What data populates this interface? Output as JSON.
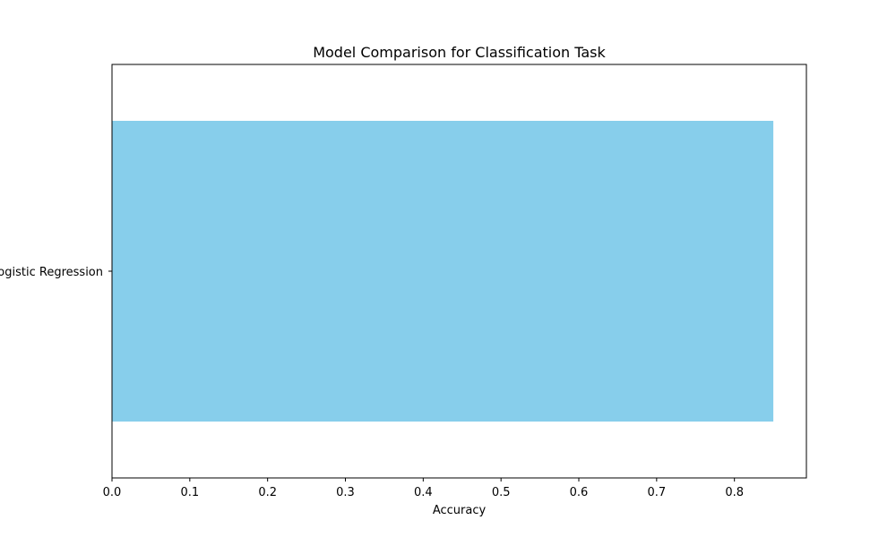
{
  "chart_data": {
    "type": "bar",
    "orientation": "horizontal",
    "title": "Model Comparison for Classification Task",
    "xlabel": "Accuracy",
    "ylabel": "",
    "categories": [
      "Logistic Regression"
    ],
    "values": [
      0.85
    ],
    "xlim": [
      0.0,
      0.8925
    ],
    "xticks": [
      "0.0",
      "0.1",
      "0.2",
      "0.3",
      "0.4",
      "0.5",
      "0.6",
      "0.7",
      "0.8"
    ],
    "grid": false,
    "bar_color": "#87CEEB"
  }
}
